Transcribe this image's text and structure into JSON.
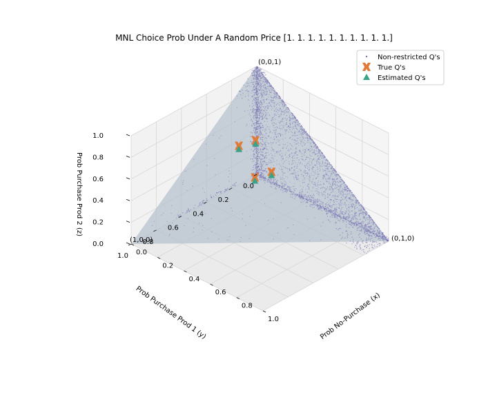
{
  "chart_data": {
    "type": "scatter",
    "projection": "3d",
    "title": "MNL Choice Prob Under A Random Price [1. 1. 1. 1. 1. 1. 1. 1. 1. 1.]",
    "xlabel": "Prob No-Purchase (x)",
    "ylabel": "Prob Purchase Prod 1 (y)",
    "zlabel": "Prob Purchase Prod 2 (z)",
    "xlim": [
      0,
      1
    ],
    "ylim": [
      0,
      1
    ],
    "zlim": [
      0,
      1
    ],
    "grid": true,
    "ticks": {
      "x": [
        "0.0",
        "0.2",
        "0.4",
        "0.6",
        "0.8",
        "1.0"
      ],
      "y": [
        "0.0",
        "0.2",
        "0.4",
        "0.6",
        "0.8",
        "1.0"
      ],
      "z": [
        "0.0",
        "0.2",
        "0.4",
        "0.6",
        "0.8",
        "1.0"
      ]
    },
    "simplex_corners": [
      {
        "label": "(1,0,0)",
        "x": 0,
        "y": 1,
        "z": 0
      },
      {
        "label": "(0,1,0)",
        "x": 1,
        "y": 0,
        "z": 0
      },
      {
        "label": "(0,0,1)",
        "x": 0,
        "y": 0,
        "z": 1
      }
    ],
    "legend": {
      "position": "top-right",
      "entries": [
        "Non-restricted Q's",
        "True Q's",
        "Estimated Q's"
      ]
    },
    "series": [
      {
        "name": "Non-restricted Q's",
        "marker": "dot",
        "color": "#7570b3",
        "note_points": "dense cloud concentrated along the edges x+z=1 (y=0) and x+y... near the (0,0,1)-(0,1,0) edge and vertical z-axis edge",
        "sample_points": [
          {
            "x": 0.02,
            "y": 0.0,
            "z": 0.98
          },
          {
            "x": 0.1,
            "y": 0.0,
            "z": 0.9
          },
          {
            "x": 0.2,
            "y": 0.0,
            "z": 0.8
          },
          {
            "x": 0.3,
            "y": 0.0,
            "z": 0.7
          },
          {
            "x": 0.4,
            "y": 0.0,
            "z": 0.6
          },
          {
            "x": 0.5,
            "y": 0.0,
            "z": 0.5
          },
          {
            "x": 0.6,
            "y": 0.0,
            "z": 0.4
          },
          {
            "x": 0.7,
            "y": 0.0,
            "z": 0.3
          },
          {
            "x": 0.8,
            "y": 0.0,
            "z": 0.2
          },
          {
            "x": 0.9,
            "y": 0.0,
            "z": 0.1
          },
          {
            "x": 0.98,
            "y": 0.0,
            "z": 0.02
          }
        ]
      },
      {
        "name": "True Q's",
        "marker": "X",
        "color": "#e07b39",
        "points": [
          {
            "x": 0.15,
            "y": 0.3,
            "z": 0.55
          },
          {
            "x": 0.2,
            "y": 0.22,
            "z": 0.58
          },
          {
            "x": 0.35,
            "y": 0.25,
            "z": 0.4
          },
          {
            "x": 0.3,
            "y": 0.33,
            "z": 0.37
          }
        ]
      },
      {
        "name": "Estimated Q's",
        "marker": "triangle",
        "color": "#3aa387",
        "points": [
          {
            "x": 0.16,
            "y": 0.31,
            "z": 0.53
          },
          {
            "x": 0.21,
            "y": 0.23,
            "z": 0.56
          },
          {
            "x": 0.36,
            "y": 0.26,
            "z": 0.38
          },
          {
            "x": 0.31,
            "y": 0.34,
            "z": 0.35
          }
        ]
      }
    ]
  }
}
